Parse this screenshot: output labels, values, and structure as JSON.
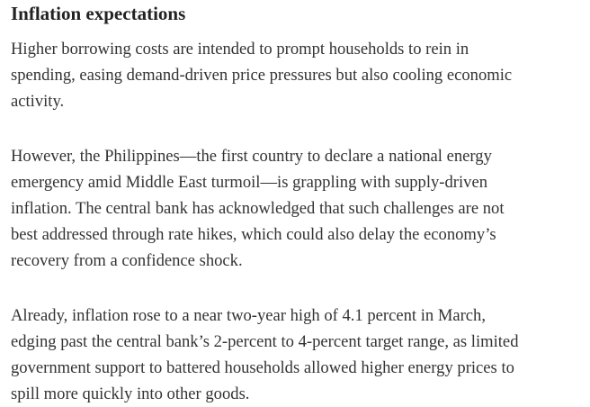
{
  "heading": "Inflation expectations",
  "paragraphs": [
    {
      "lines": [
        "Higher borrowing costs are intended to prompt households to rein in",
        "spending, easing demand-driven price pressures but also cooling economic",
        "activity."
      ]
    },
    {
      "lines": [
        "However, the Philippines—the first country to declare a national energy",
        "emergency amid Middle East turmoil—is grappling with supply-driven",
        "inflation. The central bank has acknowledged that such challenges are not",
        "best addressed through rate hikes, which could also delay the economy’s",
        "recovery from a confidence shock."
      ]
    },
    {
      "lines": [
        "Already, inflation rose to a near two-year high of 4.1 percent in March,",
        "edging past the central bank’s 2-percent to 4-percent target range, as limited",
        "government support to battered households allowed higher energy prices to",
        "spill more quickly into other goods."
      ]
    }
  ]
}
